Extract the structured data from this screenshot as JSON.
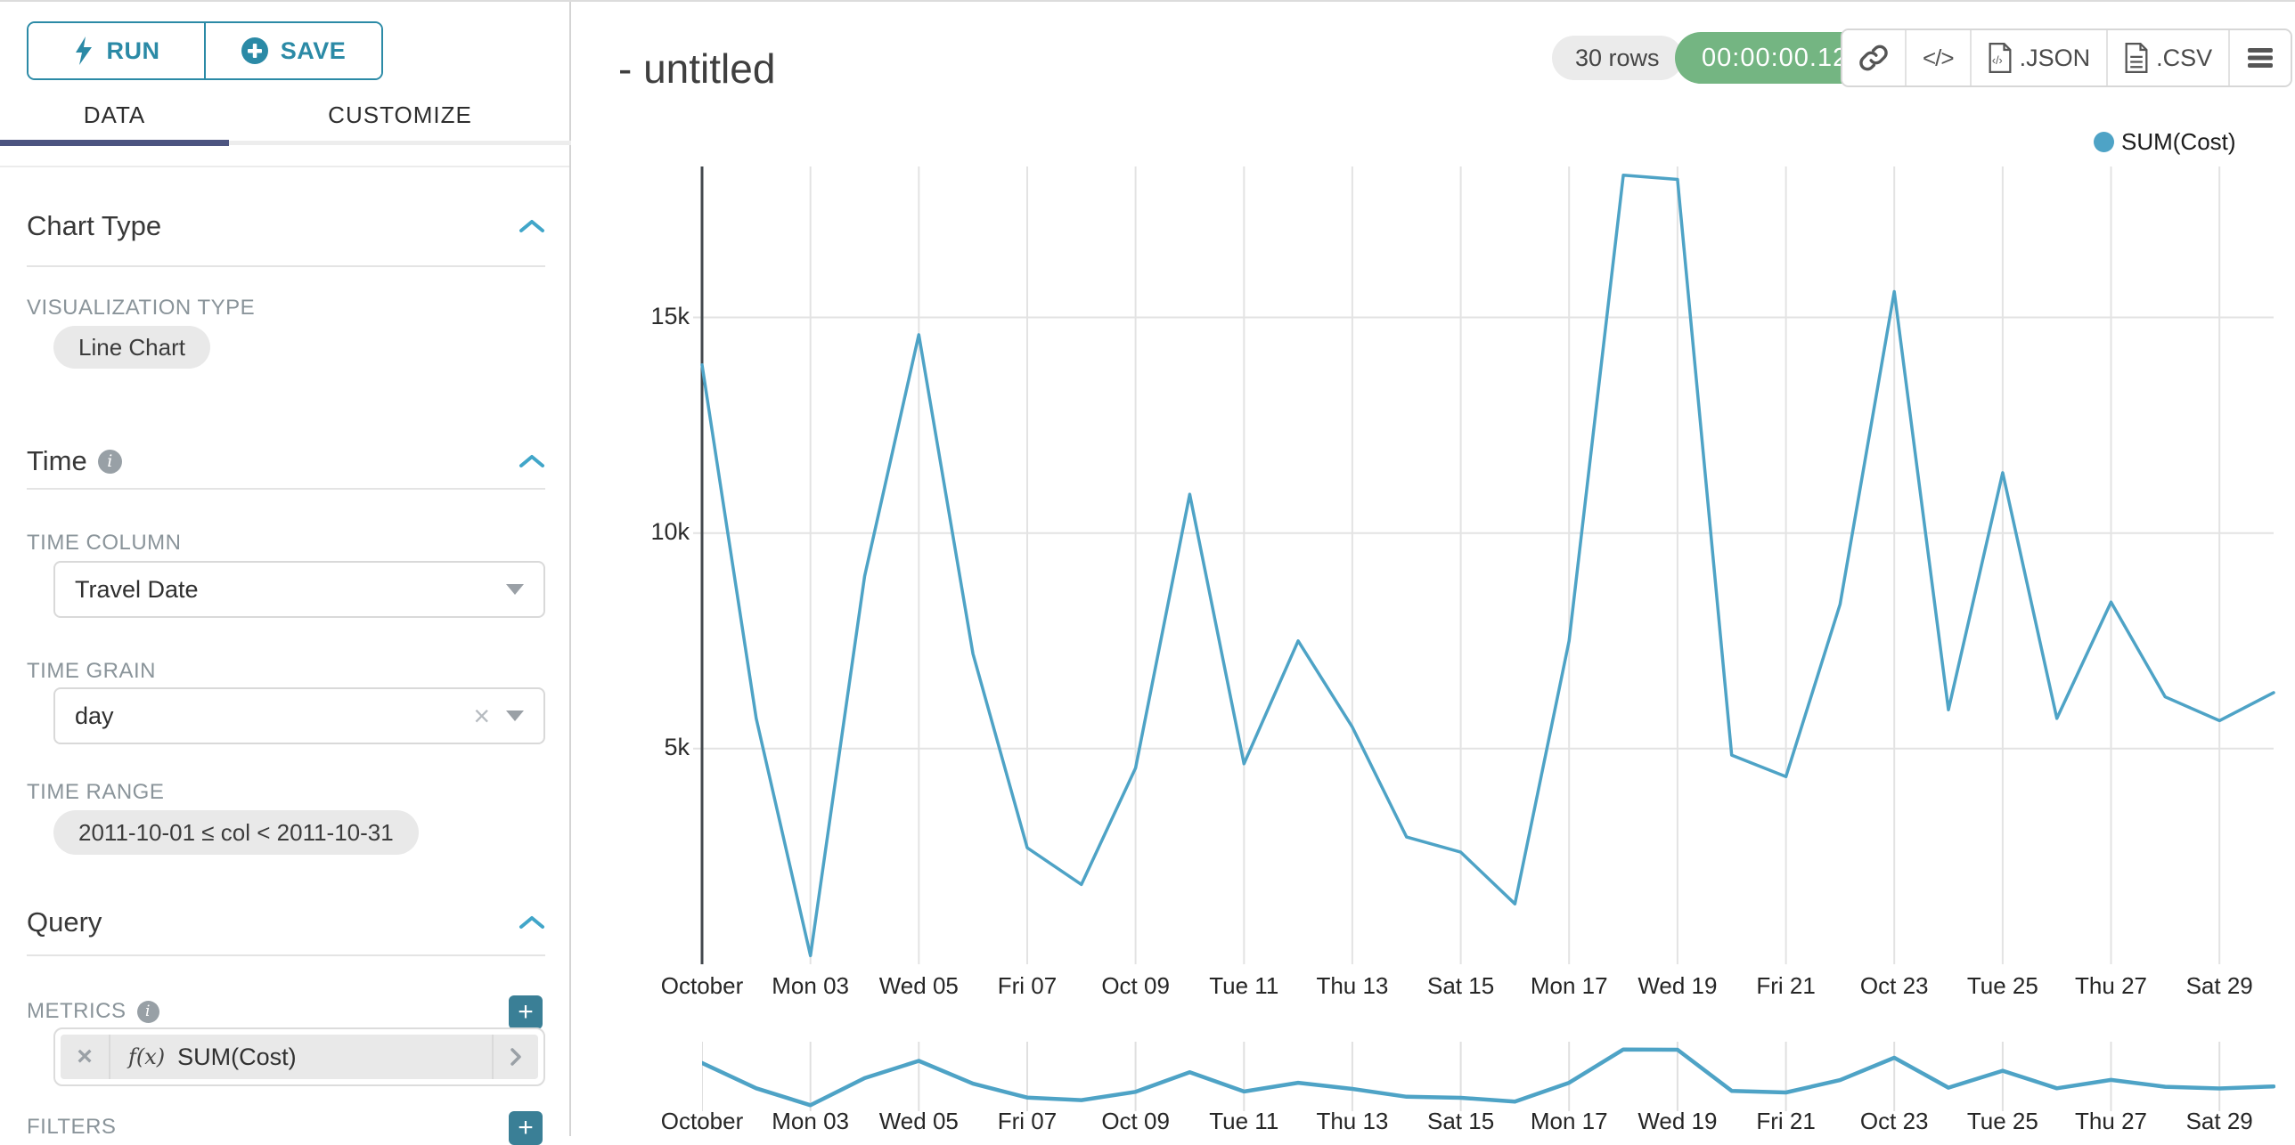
{
  "colors": {
    "teal": "#2b8aa6",
    "plus": "#3a7f96",
    "chevron": "#41a6c9",
    "line": "#4ea3c6",
    "green": "#74b582",
    "tab-active": "#4c5480"
  },
  "sidebar": {
    "run_label": "RUN",
    "save_label": "SAVE",
    "tabs": [
      {
        "label": "DATA"
      },
      {
        "label": "CUSTOMIZE"
      }
    ],
    "chart_type_section": {
      "title": "Chart Type"
    },
    "visualization_type": {
      "label": "VISUALIZATION TYPE",
      "value": "Line Chart"
    },
    "time_section": {
      "title": "Time"
    },
    "time_column": {
      "label": "TIME COLUMN",
      "value": "Travel Date"
    },
    "time_grain": {
      "label": "TIME GRAIN",
      "value": "day"
    },
    "time_range": {
      "label": "TIME RANGE",
      "value": "2011-10-01 ≤ col < 2011-10-31"
    },
    "query_section": {
      "title": "Query"
    },
    "metrics": {
      "label": "METRICS",
      "fx": "f(x)",
      "value": "SUM(Cost)"
    },
    "filters": {
      "label": "FILTERS"
    }
  },
  "header": {
    "title": "- untitled",
    "rows_badge": "30 rows",
    "timer_badge": "00:00:00.12",
    "code_glyph": "</>",
    "json_label": ".JSON",
    "csv_label": ".CSV"
  },
  "chart_data": {
    "type": "line",
    "title": "",
    "legend_position": "top-right",
    "grid": true,
    "has_brush_minichart": true,
    "x_unit": "day, 2011-10-01 through 2011-10-30",
    "x_ticks": [
      {
        "i": 0,
        "label": "October"
      },
      {
        "i": 2,
        "label": "Mon 03"
      },
      {
        "i": 4,
        "label": "Wed 05"
      },
      {
        "i": 6,
        "label": "Fri 07"
      },
      {
        "i": 8,
        "label": "Oct 09"
      },
      {
        "i": 10,
        "label": "Tue 11"
      },
      {
        "i": 12,
        "label": "Thu 13"
      },
      {
        "i": 14,
        "label": "Sat 15"
      },
      {
        "i": 16,
        "label": "Mon 17"
      },
      {
        "i": 18,
        "label": "Wed 19"
      },
      {
        "i": 20,
        "label": "Fri 21"
      },
      {
        "i": 22,
        "label": "Oct 23"
      },
      {
        "i": 24,
        "label": "Tue 25"
      },
      {
        "i": 26,
        "label": "Thu 27"
      },
      {
        "i": 28,
        "label": "Sat 29"
      }
    ],
    "y_ticks": [
      {
        "value": 5000,
        "label": "5k"
      },
      {
        "value": 10000,
        "label": "10k"
      },
      {
        "value": 15000,
        "label": "15k"
      }
    ],
    "ylim": [
      0,
      18500
    ],
    "series": [
      {
        "name": "SUM(Cost)",
        "color": "#4ea3c6",
        "values": [
          13900,
          5700,
          200,
          9000,
          14600,
          7200,
          2700,
          1850,
          4550,
          10900,
          4650,
          7500,
          5500,
          2950,
          2600,
          1400,
          7500,
          18300,
          18200,
          4850,
          4350,
          8350,
          15600,
          5900,
          11400,
          5700,
          8400,
          6200,
          5650,
          6300
        ]
      }
    ]
  }
}
